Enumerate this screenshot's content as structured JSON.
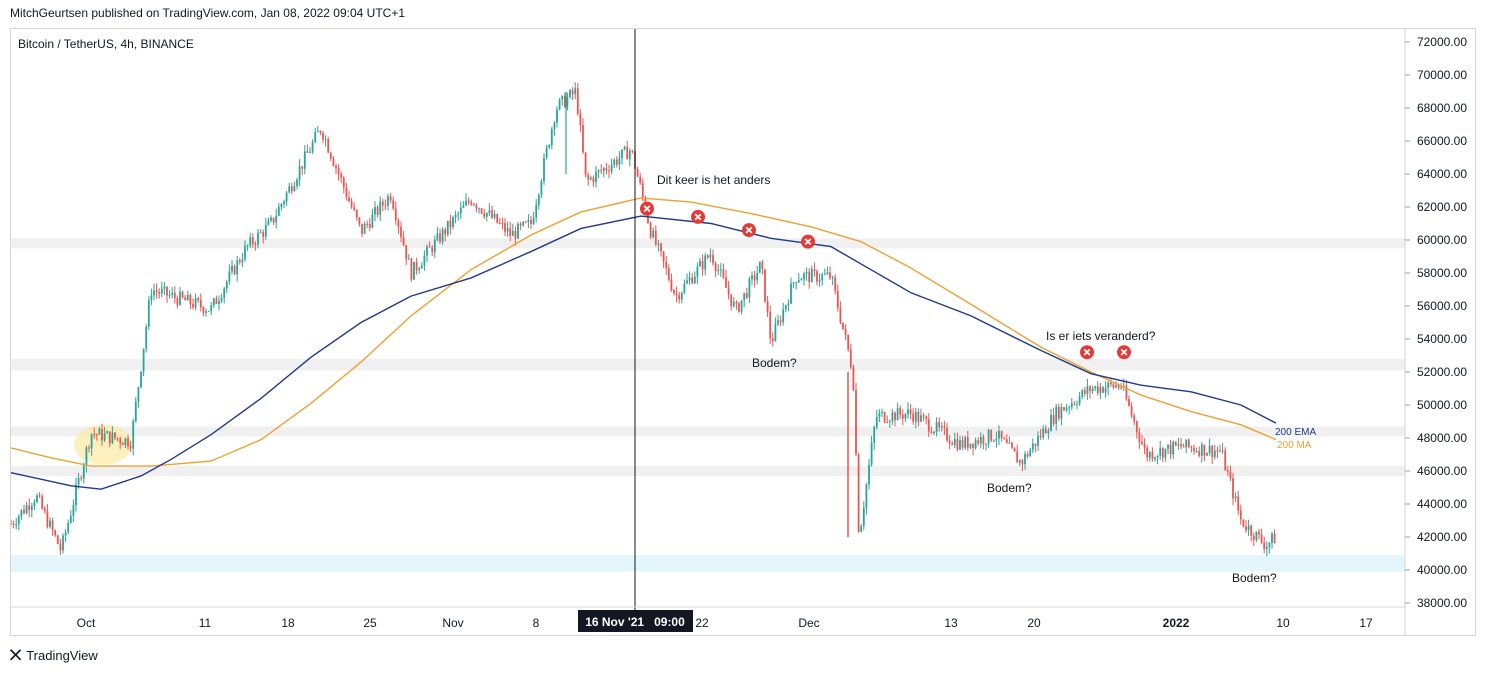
{
  "header": {
    "published": "MitchGeurtsen published on TradingView.com, Jan 08, 2022 09:04 UTC+1"
  },
  "pair": {
    "label": "Bitcoin / TetherUS, 4h, BINANCE"
  },
  "footer": {
    "brand": "TradingView"
  },
  "crosshair": {
    "label": "16 Nov '21   09:00"
  },
  "chart_data": {
    "type": "candlestick",
    "title": "Bitcoin / TetherUS, 4h, BINANCE",
    "ylim": [
      37500,
      72600
    ],
    "y_ticks": [
      "72000.00",
      "70000.00",
      "68000.00",
      "66000.00",
      "64000.00",
      "62000.00",
      "60000.00",
      "58000.00",
      "56000.00",
      "54000.00",
      "52000.00",
      "50000.00",
      "48000.00",
      "46000.00",
      "44000.00",
      "42000.00",
      "40000.00",
      "38000.00"
    ],
    "x_ticks": [
      "Oct",
      "11",
      "18",
      "25",
      "Nov",
      "8",
      "22",
      "Dec",
      "13",
      "20",
      "2022",
      "10",
      "17"
    ],
    "colors": {
      "up": "#26a69a",
      "down": "#ef5350",
      "ema": "#1e3a8a",
      "ma": "#f0a030",
      "zone": "#f0f0f0",
      "support": "#e3f6fb",
      "marker": "#e53935"
    },
    "price_path": [
      [
        0,
        42800
      ],
      [
        25,
        44500
      ],
      [
        50,
        41200
      ],
      [
        80,
        48300
      ],
      [
        120,
        47800
      ],
      [
        140,
        57000
      ],
      [
        200,
        55800
      ],
      [
        235,
        59500
      ],
      [
        260,
        61000
      ],
      [
        310,
        66800
      ],
      [
        350,
        60500
      ],
      [
        380,
        62800
      ],
      [
        400,
        58000
      ],
      [
        460,
        62500
      ],
      [
        500,
        60300
      ],
      [
        520,
        61000
      ],
      [
        545,
        68000
      ],
      [
        565,
        69000
      ],
      [
        575,
        63500
      ],
      [
        620,
        65500
      ],
      [
        640,
        60500
      ],
      [
        665,
        56600
      ],
      [
        700,
        59200
      ],
      [
        725,
        55700
      ],
      [
        750,
        58500
      ],
      [
        760,
        53800
      ],
      [
        785,
        57800
      ],
      [
        820,
        57800
      ],
      [
        842,
        52000
      ],
      [
        848,
        42000
      ],
      [
        865,
        49300
      ],
      [
        900,
        49500
      ],
      [
        950,
        47600
      ],
      [
        985,
        48200
      ],
      [
        1010,
        46500
      ],
      [
        1045,
        49500
      ],
      [
        1080,
        51000
      ],
      [
        1110,
        51200
      ],
      [
        1135,
        47000
      ],
      [
        1170,
        47500
      ],
      [
        1210,
        47200
      ],
      [
        1230,
        43000
      ],
      [
        1255,
        41500
      ],
      [
        1265,
        42000
      ]
    ],
    "ema_200": [
      [
        0,
        45900
      ],
      [
        60,
        45100
      ],
      [
        90,
        44900
      ],
      [
        130,
        45700
      ],
      [
        160,
        46700
      ],
      [
        200,
        48200
      ],
      [
        250,
        50400
      ],
      [
        300,
        52900
      ],
      [
        350,
        55000
      ],
      [
        400,
        56600
      ],
      [
        460,
        57700
      ],
      [
        520,
        59300
      ],
      [
        570,
        60700
      ],
      [
        630,
        61450
      ],
      [
        700,
        61000
      ],
      [
        760,
        60100
      ],
      [
        820,
        59600
      ],
      [
        860,
        58200
      ],
      [
        900,
        56800
      ],
      [
        960,
        55400
      ],
      [
        1030,
        53300
      ],
      [
        1080,
        51900
      ],
      [
        1130,
        51200
      ],
      [
        1180,
        50800
      ],
      [
        1230,
        50000
      ],
      [
        1265,
        48900
      ]
    ],
    "ma_200": [
      [
        0,
        47400
      ],
      [
        40,
        46800
      ],
      [
        80,
        46300
      ],
      [
        140,
        46300
      ],
      [
        200,
        46600
      ],
      [
        250,
        47900
      ],
      [
        300,
        50100
      ],
      [
        350,
        52600
      ],
      [
        400,
        55400
      ],
      [
        460,
        58200
      ],
      [
        520,
        60300
      ],
      [
        570,
        61700
      ],
      [
        630,
        62550
      ],
      [
        680,
        62300
      ],
      [
        740,
        61600
      ],
      [
        800,
        60800
      ],
      [
        850,
        59900
      ],
      [
        900,
        58300
      ],
      [
        960,
        56100
      ],
      [
        1030,
        53500
      ],
      [
        1080,
        52000
      ],
      [
        1130,
        50600
      ],
      [
        1180,
        49600
      ],
      [
        1230,
        48800
      ],
      [
        1265,
        47900
      ]
    ],
    "legend": {
      "ema_label": "200 EMA",
      "ma_label": "200 MA"
    },
    "annotations": [
      {
        "text": "Dit keer is het anders"
      },
      {
        "text": "Bodem?"
      },
      {
        "text": "Is er iets veranderd?"
      },
      {
        "text": "Bodem?"
      },
      {
        "text": "Bodem?"
      }
    ],
    "rejection_markers": [
      [
        647,
        61900
      ],
      [
        698,
        61400
      ],
      [
        749,
        60600
      ],
      [
        808,
        59900
      ],
      [
        1087,
        53200
      ],
      [
        1124,
        53200
      ]
    ],
    "horizontal_zones": [
      {
        "from": 59500,
        "to": 60100,
        "kind": "resistance"
      },
      {
        "from": 52100,
        "to": 52800,
        "kind": "resistance"
      },
      {
        "from": 48100,
        "to": 48700,
        "kind": "resistance"
      },
      {
        "from": 45700,
        "to": 46300,
        "kind": "resistance"
      },
      {
        "from": 39900,
        "to": 40900,
        "kind": "support"
      }
    ]
  }
}
